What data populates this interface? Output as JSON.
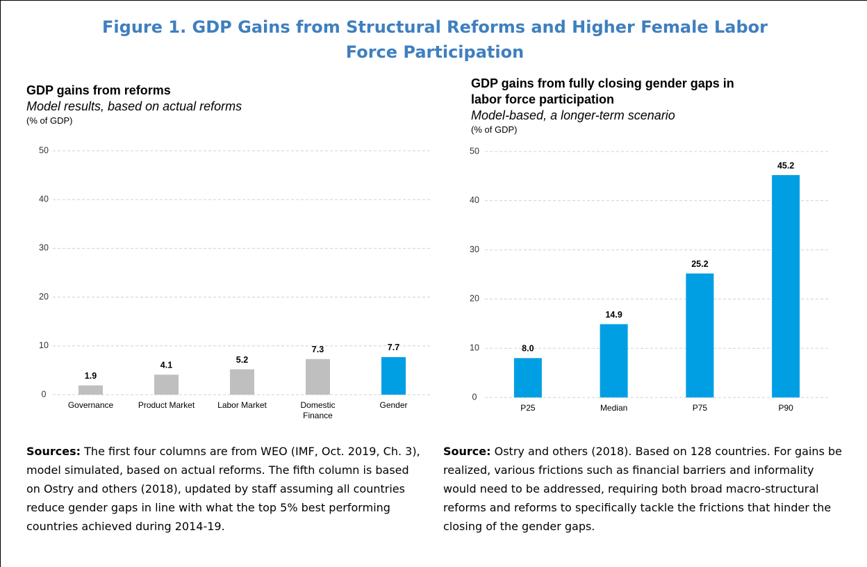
{
  "title": "Figure 1. GDP Gains from Structural Reforms and Higher Female Labor Force Participation",
  "chart_data": [
    {
      "type": "bar",
      "title": "GDP gains from reforms",
      "subtitle": "Model results, based on actual reforms",
      "y_label": "(% of GDP)",
      "categories": [
        "Governance",
        "Product Market",
        "Labor Market",
        "Domestic Finance",
        "Gender"
      ],
      "values": [
        1.9,
        4.1,
        5.2,
        7.3,
        7.7
      ],
      "colors": [
        "#bfbfbf",
        "#bfbfbf",
        "#bfbfbf",
        "#bfbfbf",
        "#009fe3"
      ],
      "ylim": [
        0,
        50
      ],
      "yticks": [
        0,
        10,
        20,
        30,
        40,
        50
      ],
      "grid": true
    },
    {
      "type": "bar",
      "title": "GDP gains from fully closing gender gaps in labor force participation",
      "subtitle": "Model-based, a longer-term scenario",
      "y_label": "(% of GDP)",
      "categories": [
        "P25",
        "Median",
        "P75",
        "P90"
      ],
      "values": [
        8,
        14.9,
        25.2,
        45.2
      ],
      "value_labels": [
        "8.0",
        "14.9",
        "25.2",
        "45.2"
      ],
      "color": "#009fe3",
      "ylim": [
        0,
        50
      ],
      "yticks": [
        0,
        10,
        20,
        30,
        40,
        50
      ],
      "grid": true
    }
  ],
  "notes": [
    {
      "label": "Sources:",
      "text": "The first four columns are from WEO (IMF, Oct. 2019, Ch. 3), model simulated, based on actual reforms. The fifth column is based on Ostry and others (2018), updated by staff assuming all countries reduce gender gaps in line with what the top 5% best performing countries achieved during 2014-19."
    },
    {
      "label": "Source:",
      "text": "Ostry and others (2018). Based on 128 countries. For gains be realized, various frictions such as financial barriers and informality would need to be addressed, requiring both broad macro-structural reforms and reforms to specifically tackle the frictions that hinder the closing of the gender gaps."
    }
  ]
}
